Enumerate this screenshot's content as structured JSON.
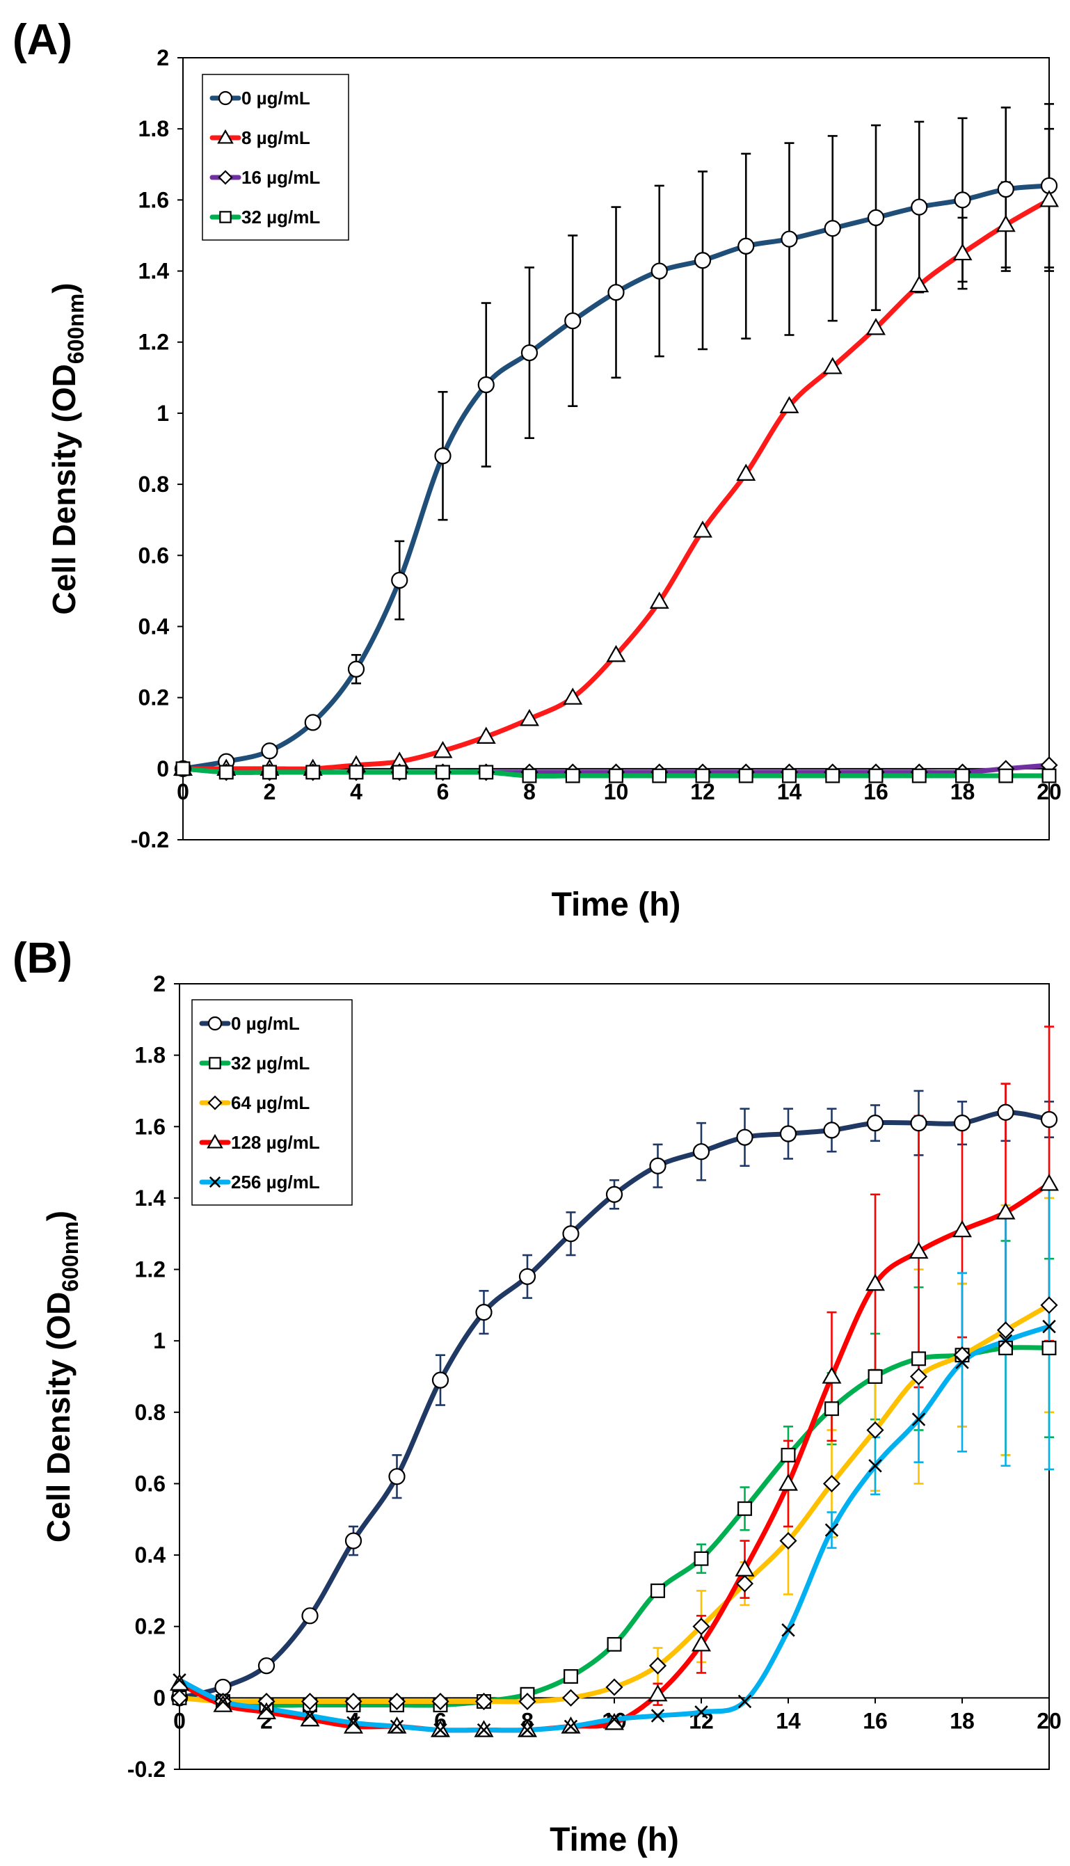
{
  "colors": {
    "axis": "#000000",
    "marker_fill": "#ffffff"
  },
  "chart_data": [
    {
      "type": "line",
      "panel_label": "(A)",
      "xlabel": "Time (h)",
      "ylabel_main": "Cell Density (OD",
      "ylabel_sub": "600nm",
      "ylabel_end": ")",
      "xlim": [
        0,
        20
      ],
      "ylim": [
        -0.2,
        2
      ],
      "x_ticks": [
        "0",
        "2",
        "4",
        "6",
        "8",
        "10",
        "12",
        "14",
        "16",
        "18",
        "20"
      ],
      "y_ticks": [
        "-0.2",
        "0",
        "0.2",
        "0.4",
        "0.6",
        "0.8",
        "1",
        "1.2",
        "1.4",
        "1.6",
        "1.8",
        "2"
      ],
      "legend_position": "top-left",
      "x": [
        0,
        1,
        2,
        3,
        4,
        5,
        6,
        7,
        8,
        9,
        10,
        11,
        12,
        13,
        14,
        15,
        16,
        17,
        18,
        19,
        20
      ],
      "series": [
        {
          "name": "0 µg/mL",
          "color": "#1f4e79",
          "marker": "circle",
          "values": [
            0.0,
            0.02,
            0.05,
            0.13,
            0.28,
            0.53,
            0.88,
            1.08,
            1.17,
            1.26,
            1.34,
            1.4,
            1.43,
            1.47,
            1.49,
            1.52,
            1.55,
            1.58,
            1.6,
            1.63,
            1.64
          ],
          "errors": [
            0,
            0,
            0,
            0,
            0.04,
            0.11,
            0.18,
            0.23,
            0.24,
            0.24,
            0.24,
            0.24,
            0.25,
            0.26,
            0.27,
            0.26,
            0.26,
            0.24,
            0.23,
            0.23,
            0.23
          ]
        },
        {
          "name": "8 µg/mL",
          "color": "#ff1a1a",
          "marker": "triangle",
          "values": [
            0.0,
            0.0,
            0.0,
            0.0,
            0.01,
            0.02,
            0.05,
            0.09,
            0.14,
            0.2,
            0.32,
            0.47,
            0.67,
            0.83,
            1.02,
            1.13,
            1.24,
            1.36,
            1.45,
            1.53,
            1.6
          ],
          "errors": [
            0,
            0,
            0,
            0,
            0,
            0,
            0,
            0,
            0,
            0,
            0,
            0,
            0,
            0,
            0,
            0,
            0,
            0,
            0.1,
            0.12,
            0.2
          ]
        },
        {
          "name": "16 µg/mL",
          "color": "#7030a0",
          "marker": "diamond",
          "values": [
            0.0,
            -0.01,
            -0.01,
            -0.01,
            -0.01,
            -0.01,
            -0.01,
            -0.01,
            -0.01,
            -0.01,
            -0.01,
            -0.01,
            -0.01,
            -0.01,
            -0.01,
            -0.01,
            -0.01,
            -0.01,
            -0.01,
            0.0,
            0.01
          ],
          "errors": []
        },
        {
          "name": "32 µg/mL",
          "color": "#00b050",
          "marker": "square",
          "values": [
            0.0,
            -0.01,
            -0.01,
            -0.01,
            -0.01,
            -0.01,
            -0.01,
            -0.01,
            -0.02,
            -0.02,
            -0.02,
            -0.02,
            -0.02,
            -0.02,
            -0.02,
            -0.02,
            -0.02,
            -0.02,
            -0.02,
            -0.02,
            -0.02
          ],
          "errors": []
        }
      ]
    },
    {
      "type": "line",
      "panel_label": "(B)",
      "xlabel": "Time (h)",
      "ylabel_main": "Cell Density (OD",
      "ylabel_sub": "600nm",
      "ylabel_end": ")",
      "xlim": [
        0,
        20
      ],
      "ylim": [
        -0.2,
        2
      ],
      "x_ticks": [
        "0",
        "2",
        "4",
        "6",
        "8",
        "10",
        "12",
        "14",
        "16",
        "18",
        "20"
      ],
      "y_ticks": [
        "-0.2",
        "0",
        "0.2",
        "0.4",
        "0.6",
        "0.8",
        "1",
        "1.2",
        "1.4",
        "1.6",
        "1.8",
        "2"
      ],
      "legend_position": "top-left",
      "x": [
        0,
        1,
        2,
        3,
        4,
        5,
        6,
        7,
        8,
        9,
        10,
        11,
        12,
        13,
        14,
        15,
        16,
        17,
        18,
        19,
        20
      ],
      "series": [
        {
          "name": "0 µg/mL",
          "color": "#1f3864",
          "marker": "circle",
          "values": [
            0.0,
            0.03,
            0.09,
            0.23,
            0.44,
            0.62,
            0.89,
            1.08,
            1.18,
            1.3,
            1.41,
            1.49,
            1.53,
            1.57,
            1.58,
            1.59,
            1.61,
            1.61,
            1.61,
            1.64,
            1.62
          ],
          "errors": [
            0,
            0,
            0,
            0,
            0.04,
            0.06,
            0.07,
            0.06,
            0.06,
            0.06,
            0.04,
            0.06,
            0.08,
            0.08,
            0.07,
            0.06,
            0.05,
            0.09,
            0.06,
            0.08,
            0.05
          ]
        },
        {
          "name": "32 µg/mL",
          "color": "#00b050",
          "marker": "square",
          "values": [
            0.0,
            -0.01,
            -0.02,
            -0.02,
            -0.02,
            -0.02,
            -0.02,
            -0.01,
            0.01,
            0.06,
            0.15,
            0.3,
            0.39,
            0.53,
            0.68,
            0.81,
            0.9,
            0.95,
            0.96,
            0.98,
            0.98
          ],
          "errors": [
            0,
            0,
            0,
            0,
            0,
            0,
            0,
            0,
            0,
            0,
            0,
            0,
            0.04,
            0.06,
            0.08,
            0.1,
            0.12,
            0.2,
            0.2,
            0.3,
            0.25
          ]
        },
        {
          "name": "64 µg/mL",
          "color": "#ffc000",
          "marker": "diamond",
          "values": [
            0.0,
            -0.01,
            -0.01,
            -0.01,
            -0.01,
            -0.01,
            -0.01,
            -0.01,
            -0.01,
            0.0,
            0.03,
            0.09,
            0.2,
            0.32,
            0.44,
            0.6,
            0.75,
            0.9,
            0.96,
            1.03,
            1.1
          ],
          "errors": [
            0,
            0,
            0,
            0,
            0,
            0,
            0,
            0,
            0,
            0,
            0,
            0.05,
            0.1,
            0.06,
            0.15,
            0.15,
            0.17,
            0.3,
            0.2,
            0.35,
            0.3
          ]
        },
        {
          "name": "128 µg/mL",
          "color": "#ff0000",
          "marker": "triangle",
          "values": [
            0.04,
            -0.02,
            -0.04,
            -0.06,
            -0.08,
            -0.08,
            -0.09,
            -0.09,
            -0.09,
            -0.08,
            -0.07,
            0.01,
            0.15,
            0.36,
            0.6,
            0.9,
            1.16,
            1.25,
            1.31,
            1.36,
            1.44
          ],
          "errors": [
            0,
            0,
            0,
            0,
            0,
            0,
            0,
            0,
            0,
            0,
            0,
            0.03,
            0.08,
            0.08,
            0.12,
            0.18,
            0.25,
            0.38,
            0.3,
            0.36,
            0.44
          ]
        },
        {
          "name": "256 µg/mL",
          "color": "#00b0f0",
          "marker": "x",
          "values": [
            0.05,
            -0.01,
            -0.03,
            -0.05,
            -0.07,
            -0.08,
            -0.09,
            -0.09,
            -0.09,
            -0.08,
            -0.06,
            -0.05,
            -0.04,
            -0.01,
            0.19,
            0.47,
            0.65,
            0.78,
            0.94,
            1.0,
            1.04
          ],
          "errors": [
            0,
            0,
            0,
            0,
            0,
            0,
            0,
            0,
            0,
            0,
            0,
            0,
            0,
            0,
            0,
            0.05,
            0.08,
            0.12,
            0.25,
            0.35,
            0.4
          ]
        }
      ]
    }
  ]
}
